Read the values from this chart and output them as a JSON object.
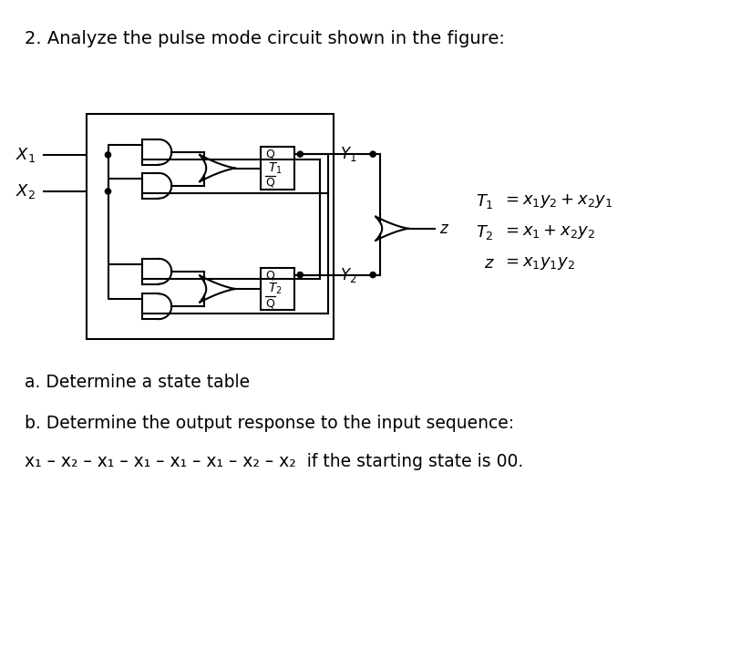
{
  "title": "2. Analyze the pulse mode circuit shown in the figure:",
  "title_fontsize": 14,
  "background_color": "#ffffff",
  "text_color": "#000000",
  "part_a": "a. Determine a state table",
  "part_b": "b. Determine the output response to the input sequence:",
  "part_b2": "x₁ – x₂ – x₁ – x₁ – x₁ – x₁ – x₂ – x₂  if the starting state is 00."
}
